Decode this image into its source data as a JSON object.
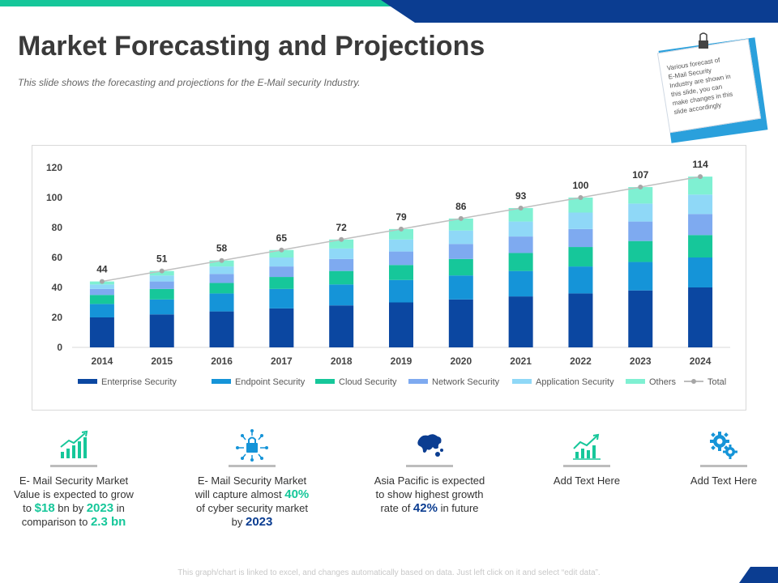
{
  "header": {
    "title": "Market Forecasting and Projections",
    "subtitle": "This slide shows the forecasting and projections for the E-Mail security Industry."
  },
  "note": {
    "lines": [
      "Various forecast of",
      "E-Mail Security",
      "Industry are shown in",
      "this slide, you can",
      "make changes in this",
      "slide accordingly"
    ]
  },
  "colors": {
    "brand_blue": "#0b3d91",
    "brand_green": "#16c79a",
    "series": [
      "#0b47a1",
      "#1594d8",
      "#16c79a",
      "#7eaaf0",
      "#8fd8f7",
      "#7ff0d2"
    ]
  },
  "chart_data": {
    "type": "bar",
    "stacked": true,
    "categories": [
      "2014",
      "2015",
      "2016",
      "2017",
      "2018",
      "2019",
      "2020",
      "2021",
      "2022",
      "2023",
      "2024"
    ],
    "series": [
      {
        "name": "Enterprise Security",
        "values": [
          20,
          22,
          24,
          26,
          28,
          30,
          32,
          34,
          36,
          38,
          40
        ]
      },
      {
        "name": "Endpoint Security",
        "values": [
          9,
          10,
          12,
          13,
          14,
          15,
          16,
          17,
          18,
          19,
          20
        ]
      },
      {
        "name": "Cloud Security",
        "values": [
          6,
          7,
          7,
          8,
          9,
          10,
          11,
          12,
          13,
          14,
          15
        ]
      },
      {
        "name": "Network Security",
        "values": [
          4,
          5,
          6,
          7,
          8,
          9,
          10,
          11,
          12,
          13,
          14
        ]
      },
      {
        "name": "Application Security",
        "values": [
          3,
          4,
          5,
          6,
          7,
          8,
          9,
          10,
          11,
          12,
          13
        ]
      },
      {
        "name": "Others",
        "values": [
          2,
          3,
          4,
          5,
          6,
          7,
          8,
          9,
          10,
          11,
          12
        ]
      }
    ],
    "total": {
      "name": "Total",
      "values": [
        44,
        51,
        58,
        65,
        72,
        79,
        86,
        93,
        100,
        107,
        114
      ]
    },
    "ylim": [
      0,
      120
    ],
    "yticks": [
      0,
      20,
      40,
      60,
      80,
      100,
      120
    ],
    "legend": "bottom",
    "grid": false,
    "title": "",
    "xlabel": "",
    "ylabel": ""
  },
  "kpis": [
    {
      "icon": "growth-chart-icon",
      "parts": [
        "E- Mail Security Market Value is expected to grow to ",
        "$18",
        " bn by ",
        "2023",
        " in comparison to ",
        "2.3 bn"
      ]
    },
    {
      "icon": "cyber-lock-icon",
      "parts": [
        "E- Mail Security Market will capture almost ",
        "40%",
        " of cyber security market by ",
        "2023"
      ]
    },
    {
      "icon": "asia-map-icon",
      "parts": [
        "Asia Pacific is expected to show highest growth rate of ",
        "42%",
        " in future"
      ]
    },
    {
      "icon": "trend-chart-icon",
      "text": "Add Text Here"
    },
    {
      "icon": "gears-icon",
      "text": "Add Text Here"
    }
  ],
  "footer": "This graph/chart is linked to excel, and changes automatically based on data. Just left click on it and select “edit data”."
}
